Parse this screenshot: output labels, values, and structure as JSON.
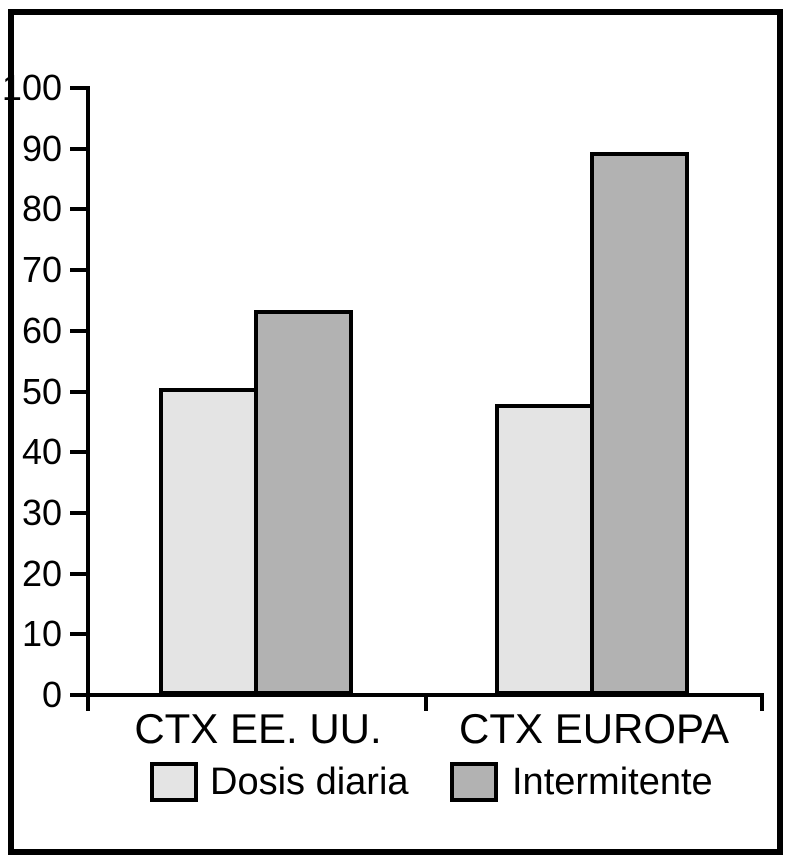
{
  "frame": {
    "border_color": "#000000",
    "background_color": "#ffffff"
  },
  "chart_data": {
    "type": "bar",
    "title": "",
    "xlabel": "",
    "ylabel": "",
    "categories": [
      "CTX EE. UU.",
      "CTX EUROPA"
    ],
    "series": [
      {
        "name": "Dosis diaria",
        "color": "#e4e4e4",
        "values": [
          50.5,
          48
        ]
      },
      {
        "name": "Intermitente",
        "color": "#b2b2b2",
        "values": [
          63.5,
          89.5
        ]
      }
    ],
    "ylim": [
      0,
      100
    ],
    "ytick_step": 10,
    "yticks": [
      0,
      10,
      20,
      30,
      40,
      50,
      60,
      70,
      80,
      90,
      100
    ],
    "grid": false,
    "legend_position": "bottom",
    "axis_color": "#000000",
    "bar_border_color": "#000000"
  }
}
